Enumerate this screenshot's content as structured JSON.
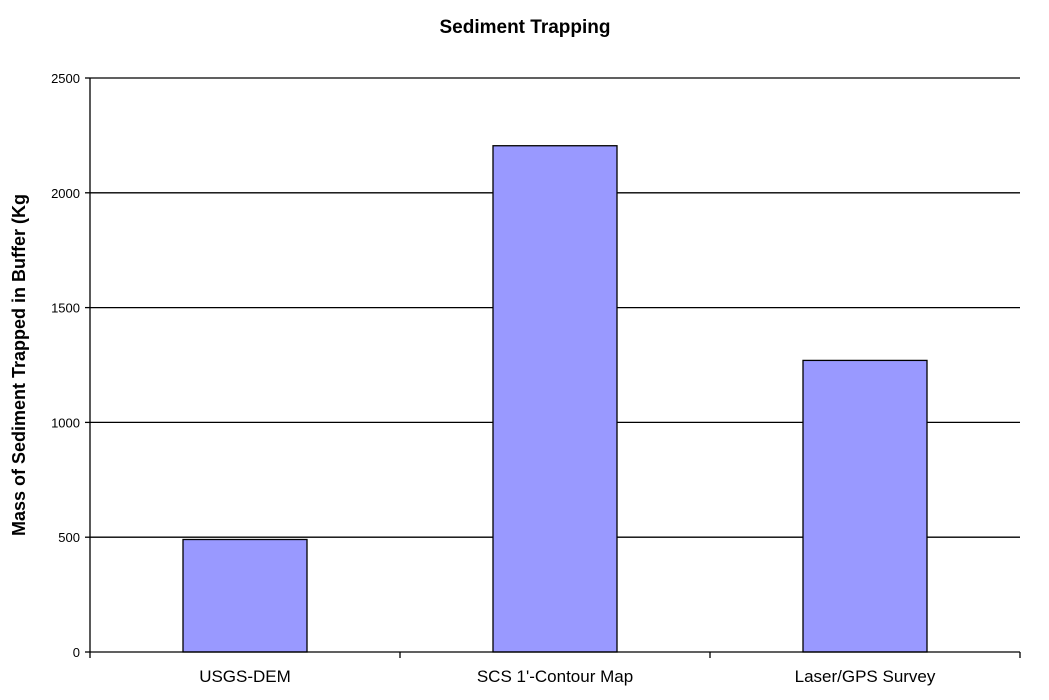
{
  "chart_data": {
    "type": "bar",
    "title": "Sediment Trapping",
    "xlabel": "",
    "ylabel": "Mass of Sediment Trapped in Buffer (Kg",
    "categories": [
      "USGS-DEM",
      "SCS 1'-Contour Map",
      "Laser/GPS Survey"
    ],
    "values": [
      490,
      2205,
      1270
    ],
    "ylim": [
      0,
      2500
    ],
    "yticks": [
      0,
      500,
      1000,
      1500,
      2000,
      2500
    ],
    "grid": true,
    "legend": "none",
    "bar_color": "#9999ff",
    "bar_edge_color": "#000000"
  }
}
